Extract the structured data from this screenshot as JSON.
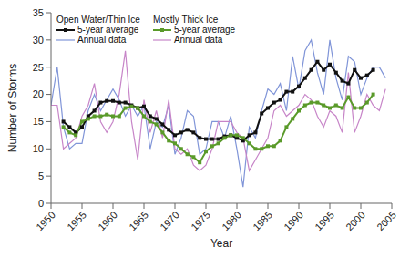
{
  "chart_data": {
    "type": "line",
    "x_label": "Year",
    "y_label": "Number of Storms",
    "x": [
      1950,
      1951,
      1952,
      1953,
      1954,
      1955,
      1956,
      1957,
      1958,
      1959,
      1960,
      1961,
      1962,
      1963,
      1964,
      1965,
      1966,
      1967,
      1968,
      1969,
      1970,
      1971,
      1972,
      1973,
      1974,
      1975,
      1976,
      1977,
      1978,
      1979,
      1980,
      1981,
      1982,
      1983,
      1984,
      1985,
      1986,
      1987,
      1988,
      1989,
      1990,
      1991,
      1992,
      1993,
      1994,
      1995,
      1996,
      1997,
      1998,
      1999,
      2000,
      2001,
      2002,
      2003,
      2004
    ],
    "series": [
      {
        "group": "Open Water/Thin Ice",
        "name": "5-year average",
        "color": "#111111",
        "marker": "square",
        "values": [
          null,
          null,
          15,
          14,
          13,
          14,
          16,
          17,
          18.5,
          18.8,
          18.8,
          18.5,
          18.5,
          18,
          17.5,
          17.8,
          16,
          15.5,
          14.5,
          13.5,
          12.5,
          13,
          13.5,
          13,
          12,
          11.8,
          11.8,
          11.8,
          12.3,
          12.5,
          12,
          11.5,
          12.5,
          13,
          16.5,
          17.5,
          18.5,
          19,
          20.5,
          20.5,
          21.5,
          23,
          24.5,
          26,
          24.5,
          25.5,
          24,
          22.5,
          22,
          24.5,
          23,
          23.5,
          24.5,
          null,
          null
        ]
      },
      {
        "group": "Open Water/Thin Ice",
        "name": "Annual data",
        "color": "#8095d8",
        "marker": "none",
        "values": [
          18,
          25,
          14,
          10,
          11,
          11,
          17,
          20,
          17,
          19,
          21,
          19,
          16,
          18,
          16,
          18,
          10,
          15,
          14,
          18,
          9,
          12,
          17,
          16,
          9,
          10,
          15,
          15,
          12,
          16,
          10,
          3,
          14,
          12,
          17,
          21,
          20,
          22,
          17,
          27,
          21,
          28,
          30,
          24,
          20,
          30,
          23,
          19,
          27,
          26,
          20,
          23,
          25,
          25,
          23
        ]
      },
      {
        "group": "Mostly Thick Ice",
        "name": "5-year average",
        "color": "#5a9a2a",
        "marker": "square",
        "values": [
          null,
          null,
          14,
          13,
          12.5,
          15,
          15.5,
          16,
          16,
          16.3,
          16,
          16,
          17.5,
          17.8,
          17.5,
          16,
          15,
          14.5,
          13,
          11.5,
          11,
          10,
          9,
          8.5,
          7.5,
          9.5,
          10.5,
          11,
          12,
          12.5,
          12.5,
          12,
          11,
          10,
          10,
          10.5,
          10.5,
          11.5,
          14,
          15.5,
          17,
          18,
          18.5,
          18.5,
          18,
          17.5,
          18,
          17.5,
          19.5,
          17.5,
          17.5,
          18.5,
          20,
          null,
          null
        ]
      },
      {
        "group": "Mostly Thick Ice",
        "name": "Annual data",
        "color": "#c785c8",
        "marker": "none",
        "values": [
          18,
          18,
          10,
          11,
          12,
          16,
          18,
          22,
          15,
          13,
          15,
          20,
          28,
          15,
          8,
          19,
          13,
          17,
          12,
          19,
          10,
          9,
          10,
          7,
          6,
          7,
          10,
          15,
          15,
          15,
          13,
          12,
          6,
          8,
          10,
          12,
          17,
          18,
          16,
          17,
          18,
          20,
          19,
          16,
          14,
          17,
          16,
          13,
          24,
          13,
          16,
          20,
          18,
          17,
          21
        ]
      }
    ],
    "xlim": [
      1950,
      2005
    ],
    "xticks": [
      1950,
      1955,
      1960,
      1965,
      1970,
      1975,
      1980,
      1985,
      1990,
      1995,
      2000,
      2005
    ],
    "ylim": [
      0,
      35
    ],
    "yticks": [
      0,
      5,
      10,
      15,
      20,
      25,
      30,
      35
    ],
    "grid": false,
    "legend": "upper left"
  }
}
